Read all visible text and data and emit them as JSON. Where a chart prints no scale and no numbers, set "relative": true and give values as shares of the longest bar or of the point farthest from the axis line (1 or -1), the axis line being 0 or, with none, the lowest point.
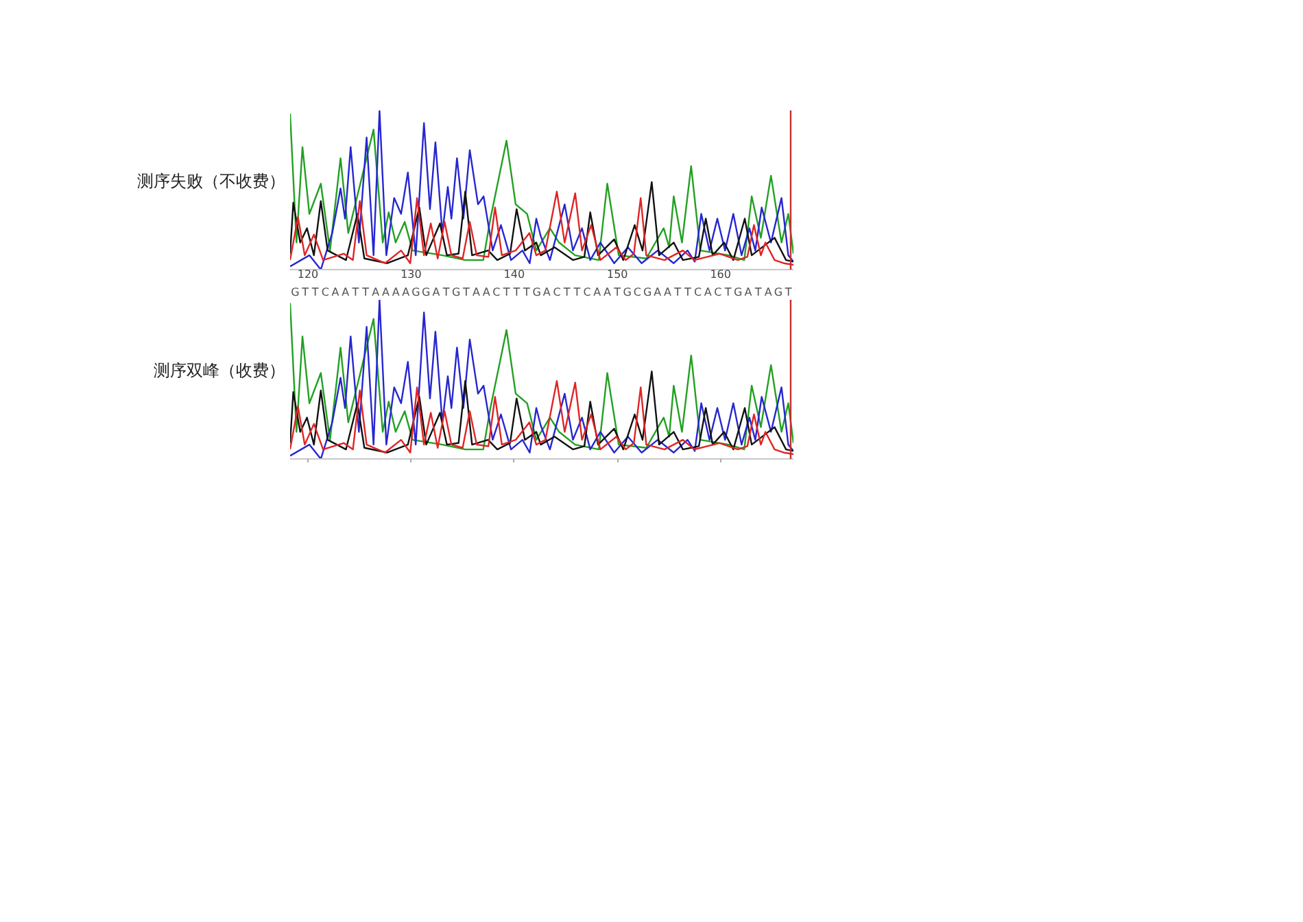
{
  "chart_data": [
    {
      "type": "line",
      "title": "测序失败（不收费）",
      "relative": true,
      "tick_labels": "x",
      "xlim": [
        118.27,
        167.07
      ],
      "xticks": [
        120,
        130,
        140,
        150,
        160
      ],
      "ref_lines": [
        {
          "axis": "x",
          "value": 166.8,
          "color": "#c03030"
        }
      ],
      "series": [
        {
          "color": "#22a022",
          "x": [
            118.27,
            118.89,
            119.47,
            120.14,
            121.25,
            122.14,
            123.16,
            123.91,
            126.36,
            127.25,
            127.83,
            128.5,
            129.38,
            130.14,
            133.03,
            135.25,
            137.0,
            137.69,
            139.25,
            140.14,
            141.25,
            142.14,
            143.46,
            144.35,
            145.9,
            148.2,
            149.02,
            150.13,
            152.8,
            154.49,
            155.02,
            155.46,
            156.26,
            157.15,
            158.04,
            160.8,
            162.3,
            163.02,
            163.91,
            164.89,
            165.91,
            166.57,
            167.07
          ],
          "values": [
            0.98,
            0.17,
            0.77,
            0.35,
            0.54,
            0.12,
            0.7,
            0.23,
            0.88,
            0.17,
            0.36,
            0.17,
            0.3,
            0.12,
            0.09,
            0.06,
            0.06,
            0.32,
            0.81,
            0.41,
            0.35,
            0.12,
            0.26,
            0.17,
            0.09,
            0.06,
            0.54,
            0.09,
            0.07,
            0.26,
            0.14,
            0.46,
            0.17,
            0.65,
            0.12,
            0.09,
            0.06,
            0.46,
            0.2,
            0.59,
            0.17,
            0.35,
            0.1
          ]
        },
        {
          "color": "#2626d0",
          "x": [
            118.27,
            120.14,
            121.25,
            122.36,
            123.16,
            123.6,
            124.14,
            124.94,
            125.69,
            126.36,
            126.94,
            127.6,
            128.36,
            129.03,
            129.69,
            130.45,
            131.25,
            131.83,
            132.36,
            133.03,
            133.56,
            133.91,
            134.45,
            135.07,
            135.69,
            136.49,
            137.03,
            137.91,
            138.71,
            139.69,
            140.8,
            141.5,
            142.14,
            142.57,
            143.46,
            144.89,
            145.69,
            146.57,
            147.37,
            148.35,
            149.69,
            151.02,
            152.35,
            153.91,
            155.46,
            156.8,
            157.5,
            158.13,
            158.93,
            159.69,
            160.44,
            161.24,
            162.04,
            162.8,
            163.37,
            163.99,
            164.89,
            165.91,
            166.57,
            167.07
          ],
          "values": [
            0.02,
            0.09,
            0.0,
            0.23,
            0.51,
            0.32,
            0.77,
            0.17,
            0.83,
            0.09,
            1.0,
            0.09,
            0.45,
            0.35,
            0.61,
            0.09,
            0.92,
            0.38,
            0.8,
            0.23,
            0.52,
            0.32,
            0.7,
            0.32,
            0.75,
            0.41,
            0.46,
            0.12,
            0.28,
            0.06,
            0.12,
            0.04,
            0.32,
            0.21,
            0.06,
            0.41,
            0.12,
            0.26,
            0.06,
            0.17,
            0.04,
            0.14,
            0.04,
            0.12,
            0.04,
            0.12,
            0.05,
            0.35,
            0.12,
            0.32,
            0.12,
            0.35,
            0.09,
            0.26,
            0.12,
            0.39,
            0.17,
            0.45,
            0.09,
            0.05
          ]
        },
        {
          "color": "#111111",
          "x": [
            118.27,
            118.58,
            119.25,
            119.91,
            120.58,
            121.25,
            121.91,
            123.69,
            124.8,
            125.47,
            127.69,
            129.69,
            130.8,
            131.47,
            132.8,
            133.47,
            134.6,
            135.25,
            135.91,
            137.47,
            138.36,
            139.6,
            140.23,
            141.03,
            142.14,
            142.57,
            143.91,
            145.69,
            146.8,
            147.37,
            148.13,
            149.69,
            150.57,
            151.68,
            152.44,
            153.33,
            154.04,
            155.46,
            156.35,
            157.9,
            158.57,
            159.24,
            160.35,
            161.24,
            162.35,
            163.02,
            165.24,
            166.35,
            167.07
          ],
          "values": [
            0.1,
            0.42,
            0.17,
            0.26,
            0.09,
            0.43,
            0.12,
            0.06,
            0.35,
            0.07,
            0.04,
            0.09,
            0.39,
            0.09,
            0.29,
            0.09,
            0.1,
            0.49,
            0.09,
            0.12,
            0.06,
            0.1,
            0.38,
            0.12,
            0.17,
            0.09,
            0.14,
            0.06,
            0.08,
            0.36,
            0.09,
            0.19,
            0.06,
            0.28,
            0.12,
            0.55,
            0.09,
            0.17,
            0.06,
            0.08,
            0.32,
            0.09,
            0.17,
            0.06,
            0.32,
            0.09,
            0.2,
            0.06,
            0.05
          ]
        },
        {
          "color": "#e02424",
          "x": [
            118.27,
            119.03,
            119.69,
            120.58,
            121.47,
            123.47,
            124.36,
            125.03,
            125.69,
            127.47,
            129.03,
            129.92,
            130.58,
            131.25,
            131.91,
            132.58,
            133.25,
            133.91,
            135.0,
            135.69,
            136.36,
            137.5,
            138.14,
            138.8,
            140.14,
            141.47,
            142.14,
            143.02,
            144.13,
            144.89,
            145.91,
            146.57,
            147.46,
            148.35,
            149.91,
            150.8,
            151.6,
            152.26,
            152.8,
            154.57,
            156.35,
            157.46,
            159.91,
            161.68,
            162.6,
            163.24,
            163.91,
            164.35,
            165.24,
            166.13,
            167.07
          ],
          "values": [
            0.06,
            0.33,
            0.09,
            0.22,
            0.06,
            0.1,
            0.06,
            0.43,
            0.09,
            0.04,
            0.12,
            0.04,
            0.45,
            0.09,
            0.29,
            0.07,
            0.3,
            0.09,
            0.07,
            0.3,
            0.09,
            0.08,
            0.39,
            0.09,
            0.12,
            0.23,
            0.09,
            0.12,
            0.49,
            0.17,
            0.48,
            0.12,
            0.28,
            0.06,
            0.14,
            0.06,
            0.1,
            0.45,
            0.09,
            0.06,
            0.12,
            0.06,
            0.1,
            0.06,
            0.08,
            0.28,
            0.09,
            0.17,
            0.06,
            0.04,
            0.03
          ]
        }
      ]
    },
    {
      "type": "other",
      "categories": [
        "G",
        "T",
        "T",
        "C",
        "A",
        "A",
        "T",
        "T",
        "A",
        "A",
        "A",
        "A",
        "G",
        "G",
        "A",
        "T",
        "G",
        "T",
        "A",
        "A",
        "C",
        "T",
        "T",
        "T",
        "G",
        "A",
        "C",
        "T",
        "T",
        "C",
        "A",
        "A",
        "T",
        "G",
        "C",
        "G",
        "A",
        "A",
        "T",
        "T",
        "C",
        "A",
        "C",
        "T",
        "G",
        "A",
        "T",
        "A",
        "G",
        "T"
      ]
    },
    {
      "type": "line",
      "title": "测序双峰（收费）",
      "relative": true,
      "tick_labels": false,
      "xlim": [
        118.27,
        167.07
      ],
      "xticks": [
        120,
        130,
        140,
        150,
        160
      ],
      "ref_lines": [
        {
          "axis": "x",
          "value": 166.8,
          "color": "#c03030"
        }
      ],
      "series": [
        {
          "color": "#22a022",
          "x": [
            118.27,
            118.89,
            119.47,
            120.14,
            121.25,
            122.14,
            123.16,
            123.91,
            126.36,
            127.25,
            127.83,
            128.5,
            129.38,
            130.14,
            133.03,
            135.25,
            137.0,
            137.69,
            139.25,
            140.14,
            141.25,
            142.14,
            143.46,
            144.35,
            145.9,
            148.2,
            149.02,
            150.13,
            152.8,
            154.49,
            155.02,
            155.46,
            156.26,
            157.15,
            158.04,
            160.8,
            162.3,
            163.02,
            163.91,
            164.89,
            165.91,
            166.57,
            167.07
          ],
          "values": [
            0.98,
            0.17,
            0.77,
            0.35,
            0.54,
            0.12,
            0.7,
            0.23,
            0.88,
            0.17,
            0.36,
            0.17,
            0.3,
            0.12,
            0.09,
            0.06,
            0.06,
            0.32,
            0.81,
            0.41,
            0.35,
            0.12,
            0.26,
            0.17,
            0.09,
            0.06,
            0.54,
            0.09,
            0.07,
            0.26,
            0.14,
            0.46,
            0.17,
            0.65,
            0.12,
            0.09,
            0.06,
            0.46,
            0.2,
            0.59,
            0.17,
            0.35,
            0.1
          ]
        },
        {
          "color": "#2626d0",
          "x": [
            118.27,
            120.14,
            121.25,
            122.36,
            123.16,
            123.6,
            124.14,
            124.94,
            125.69,
            126.36,
            126.94,
            127.6,
            128.36,
            129.03,
            129.69,
            130.45,
            131.25,
            131.83,
            132.36,
            133.03,
            133.56,
            133.91,
            134.45,
            135.07,
            135.69,
            136.49,
            137.03,
            137.91,
            138.71,
            139.69,
            140.8,
            141.5,
            142.14,
            142.57,
            143.46,
            144.89,
            145.69,
            146.57,
            147.37,
            148.35,
            149.69,
            151.02,
            152.35,
            153.91,
            155.46,
            156.8,
            157.5,
            158.13,
            158.93,
            159.69,
            160.44,
            161.24,
            162.04,
            162.8,
            163.37,
            163.99,
            164.89,
            165.91,
            166.57,
            167.07
          ],
          "values": [
            0.02,
            0.09,
            0.0,
            0.23,
            0.51,
            0.32,
            0.77,
            0.17,
            0.83,
            0.09,
            1.0,
            0.09,
            0.45,
            0.35,
            0.61,
            0.09,
            0.92,
            0.38,
            0.8,
            0.23,
            0.52,
            0.32,
            0.7,
            0.32,
            0.75,
            0.41,
            0.46,
            0.12,
            0.28,
            0.06,
            0.12,
            0.04,
            0.32,
            0.21,
            0.06,
            0.41,
            0.12,
            0.26,
            0.06,
            0.17,
            0.04,
            0.14,
            0.04,
            0.12,
            0.04,
            0.12,
            0.05,
            0.35,
            0.12,
            0.32,
            0.12,
            0.35,
            0.09,
            0.26,
            0.12,
            0.39,
            0.17,
            0.45,
            0.09,
            0.05
          ]
        },
        {
          "color": "#111111",
          "x": [
            118.27,
            118.58,
            119.25,
            119.91,
            120.58,
            121.25,
            121.91,
            123.69,
            124.8,
            125.47,
            127.69,
            129.69,
            130.8,
            131.47,
            132.8,
            133.47,
            134.6,
            135.25,
            135.91,
            137.47,
            138.36,
            139.6,
            140.23,
            141.03,
            142.14,
            142.57,
            143.91,
            145.69,
            146.8,
            147.37,
            148.13,
            149.69,
            150.57,
            151.68,
            152.44,
            153.33,
            154.04,
            155.46,
            156.35,
            157.9,
            158.57,
            159.24,
            160.35,
            161.24,
            162.35,
            163.02,
            165.24,
            166.35,
            167.07
          ],
          "values": [
            0.1,
            0.42,
            0.17,
            0.26,
            0.09,
            0.43,
            0.12,
            0.06,
            0.35,
            0.07,
            0.04,
            0.09,
            0.39,
            0.09,
            0.29,
            0.09,
            0.1,
            0.49,
            0.09,
            0.12,
            0.06,
            0.1,
            0.38,
            0.12,
            0.17,
            0.09,
            0.14,
            0.06,
            0.08,
            0.36,
            0.09,
            0.19,
            0.06,
            0.28,
            0.12,
            0.55,
            0.09,
            0.17,
            0.06,
            0.08,
            0.32,
            0.09,
            0.17,
            0.06,
            0.32,
            0.09,
            0.2,
            0.06,
            0.05
          ]
        },
        {
          "color": "#e02424",
          "x": [
            118.27,
            119.03,
            119.69,
            120.58,
            121.47,
            123.47,
            124.36,
            125.03,
            125.69,
            127.47,
            129.03,
            129.92,
            130.58,
            131.25,
            131.91,
            132.58,
            133.25,
            133.91,
            135.0,
            135.69,
            136.36,
            137.5,
            138.14,
            138.8,
            140.14,
            141.47,
            142.14,
            143.02,
            144.13,
            144.89,
            145.91,
            146.57,
            147.46,
            148.35,
            149.91,
            150.8,
            151.6,
            152.26,
            152.8,
            154.57,
            156.35,
            157.46,
            159.91,
            161.68,
            162.6,
            163.24,
            163.91,
            164.35,
            165.24,
            166.13,
            167.07
          ],
          "values": [
            0.06,
            0.33,
            0.09,
            0.22,
            0.06,
            0.1,
            0.06,
            0.43,
            0.09,
            0.04,
            0.12,
            0.04,
            0.45,
            0.09,
            0.29,
            0.07,
            0.3,
            0.09,
            0.07,
            0.3,
            0.09,
            0.08,
            0.39,
            0.09,
            0.12,
            0.23,
            0.09,
            0.12,
            0.49,
            0.17,
            0.48,
            0.12,
            0.28,
            0.06,
            0.14,
            0.06,
            0.1,
            0.45,
            0.09,
            0.06,
            0.12,
            0.06,
            0.1,
            0.06,
            0.08,
            0.28,
            0.09,
            0.17,
            0.06,
            0.04,
            0.03
          ]
        }
      ]
    }
  ]
}
